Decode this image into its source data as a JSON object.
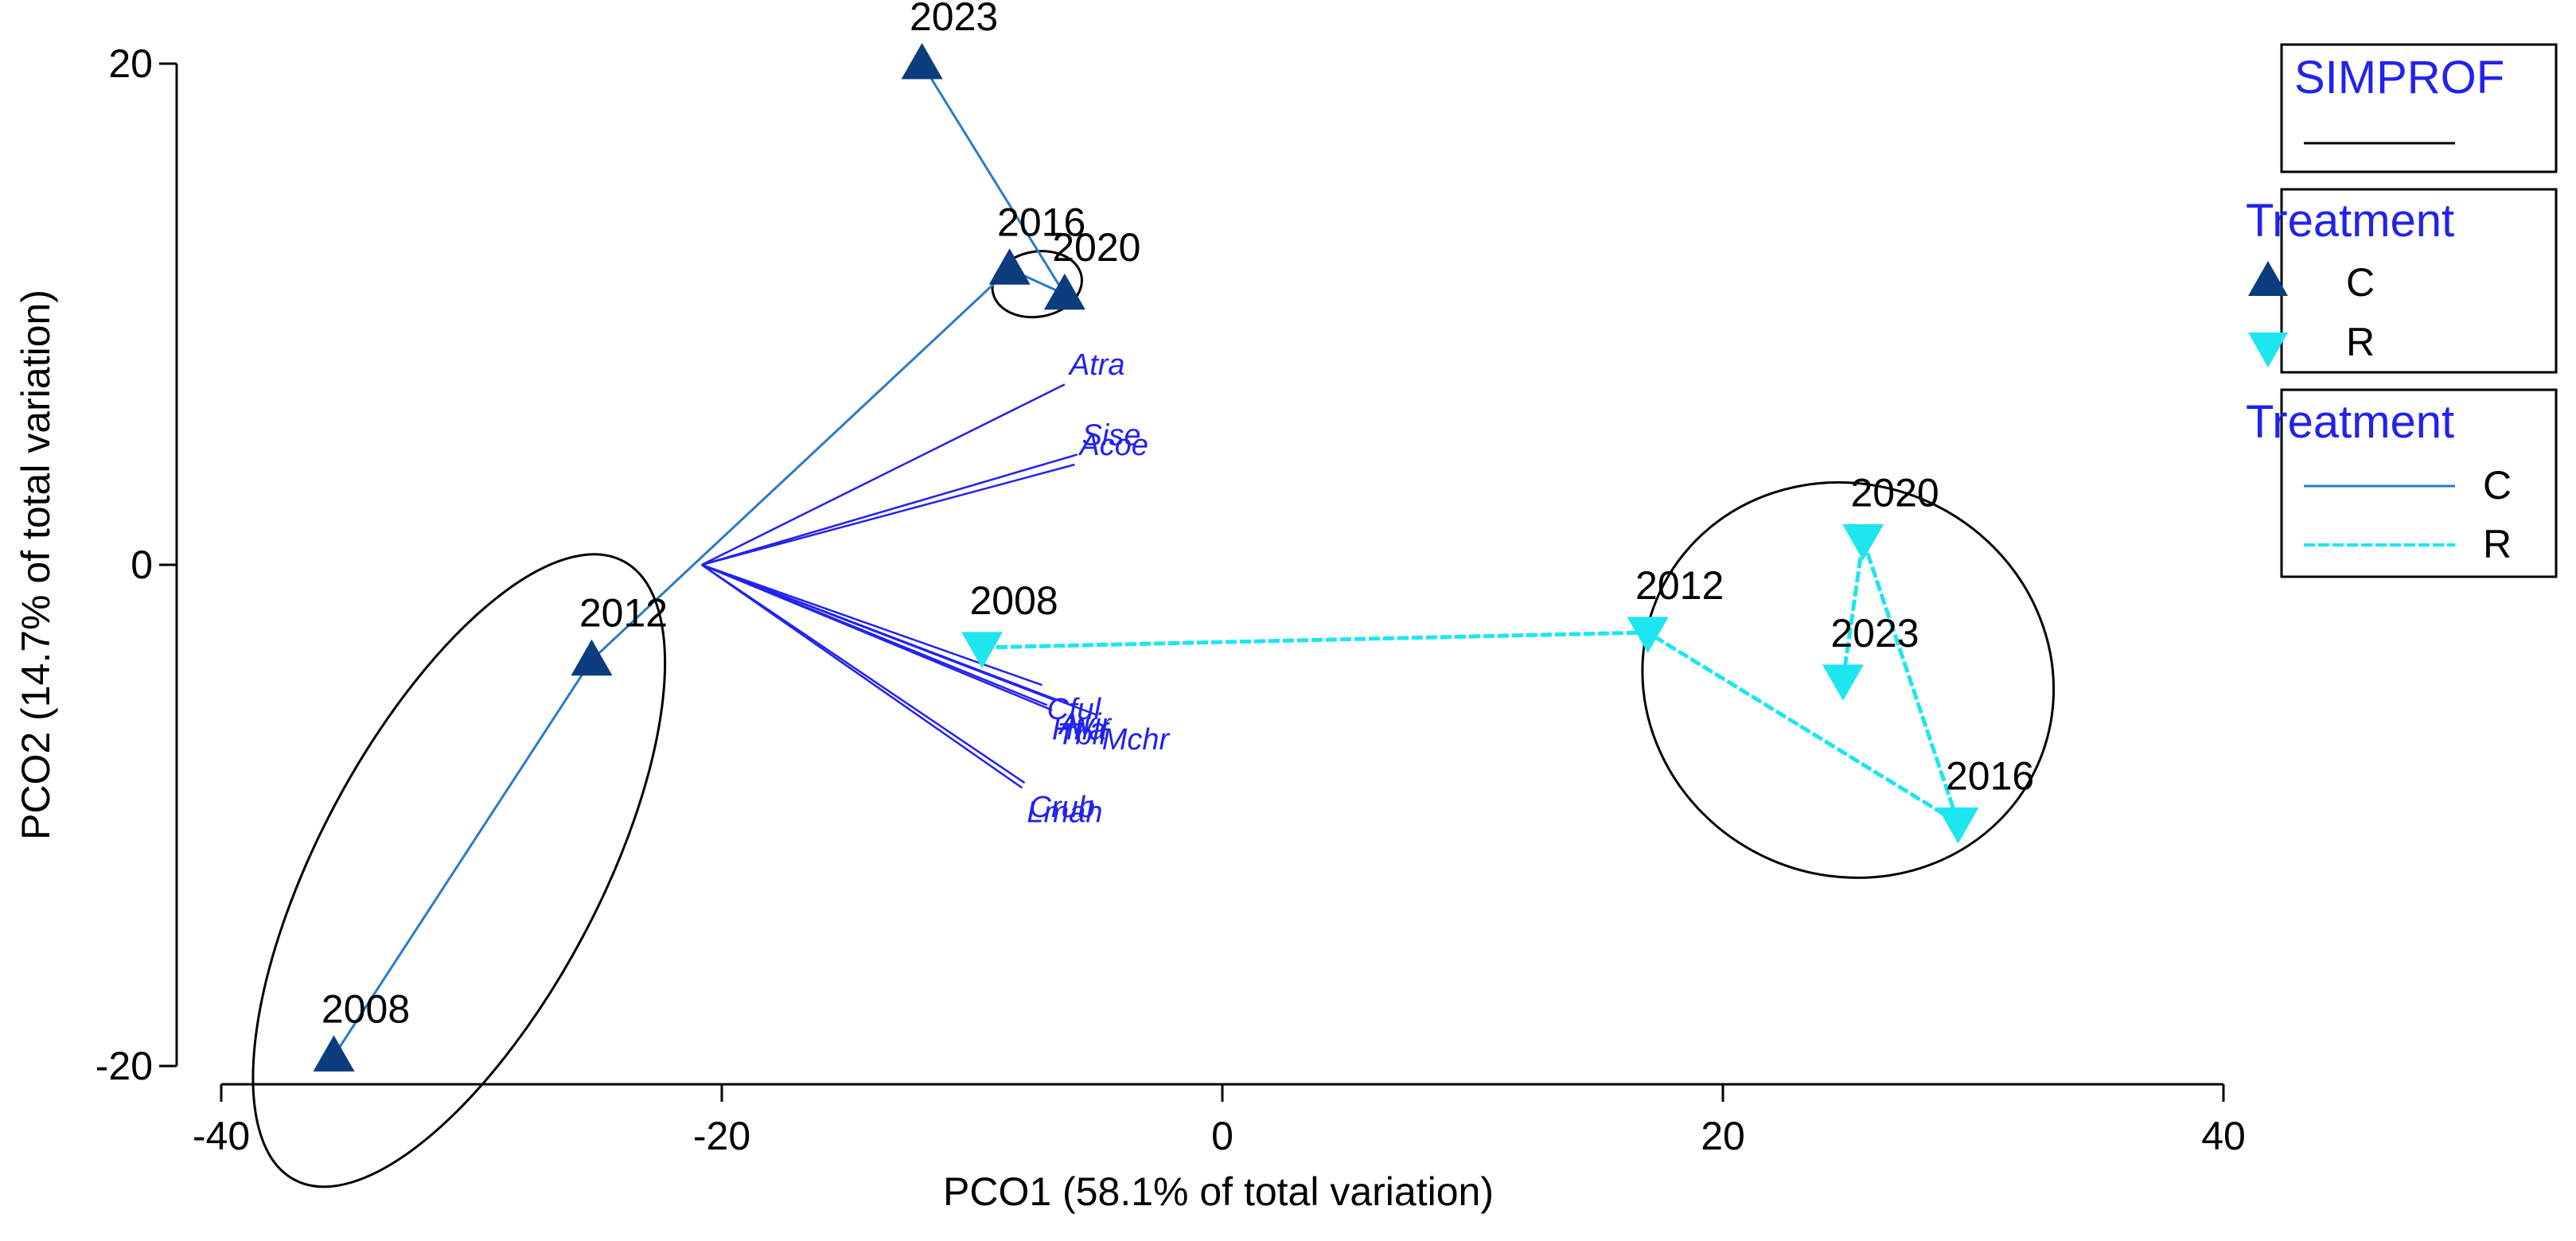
{
  "chart_data": {
    "type": "scatter",
    "xlabel": "PCO1 (58.1% of total variation)",
    "ylabel": "PCO2 (14.7% of total variation)",
    "xlim": [
      -40,
      40
    ],
    "ylim": [
      -20,
      20
    ],
    "x_ticks": [
      -40,
      -20,
      0,
      20,
      40
    ],
    "y_ticks": [
      -20,
      0,
      20
    ],
    "x_tick_labels": [
      "-40",
      "-20",
      "0",
      "20",
      "40"
    ],
    "y_tick_labels": [
      "-20",
      "0",
      "20"
    ],
    "series": [
      {
        "name": "C",
        "color": "#0b3c7d",
        "line_color": "#2b7bc8",
        "line_style": "solid",
        "marker": "triangle-up",
        "points": [
          {
            "label": "2008",
            "x": -35.5,
            "y": -19.6
          },
          {
            "label": "2012",
            "x": -25.2,
            "y": -3.8
          },
          {
            "label": "2016",
            "x": -8.5,
            "y": 11.8
          },
          {
            "label": "2020",
            "x": -6.3,
            "y": 10.8
          },
          {
            "label": "2023",
            "x": -12.0,
            "y": 20.0
          }
        ]
      },
      {
        "name": "R",
        "color": "#1de6f0",
        "line_color": "#1de6f0",
        "line_style": "dashed",
        "marker": "triangle-down",
        "points": [
          {
            "label": "2008",
            "x": -9.6,
            "y": -3.3
          },
          {
            "label": "2012",
            "x": 17.0,
            "y": -2.7
          },
          {
            "label": "2016",
            "x": 29.4,
            "y": -10.3
          },
          {
            "label": "2020",
            "x": 25.6,
            "y": 1.0
          },
          {
            "label": "2023",
            "x": 24.8,
            "y": -4.6
          }
        ]
      }
    ],
    "simprof_groups": [
      {
        "cx": -30.5,
        "cy": -12.2,
        "rx": 14.0,
        "ry": 5.6,
        "angle": -62
      },
      {
        "cx": -7.4,
        "cy": 11.2,
        "rx": 1.8,
        "ry": 1.3,
        "angle": -10
      },
      {
        "cx": 25.0,
        "cy": -4.6,
        "rx": 8.3,
        "ry": 7.8,
        "angle": 25
      }
    ],
    "vectors": {
      "origin": [
        -20.8,
        0.0
      ],
      "items": [
        {
          "label": "Atra",
          "x": -6.3,
          "y": 7.2
        },
        {
          "label": "Sise",
          "x": -5.8,
          "y": 4.4
        },
        {
          "label": "Acoe",
          "x": -5.9,
          "y": 4.0
        },
        {
          "label": "Cful",
          "x": -7.2,
          "y": -4.8
        },
        {
          "label": "Avir",
          "x": -6.7,
          "y": -5.4
        },
        {
          "label": "Mchr",
          "x": -5.0,
          "y": -6.0
        },
        {
          "label": "Tbif",
          "x": -6.8,
          "y": -5.8
        },
        {
          "label": "Hfla",
          "x": -7.0,
          "y": -5.6
        },
        {
          "label": "Crub",
          "x": -7.9,
          "y": -8.7
        },
        {
          "label": "Lmah",
          "x": -8.0,
          "y": -8.9
        }
      ]
    }
  },
  "legend": {
    "simprof_title": "SIMPROF",
    "treatment_marker_title": "Treatment",
    "treatment_line_title": "Treatment",
    "entries": [
      "C",
      "R"
    ]
  }
}
